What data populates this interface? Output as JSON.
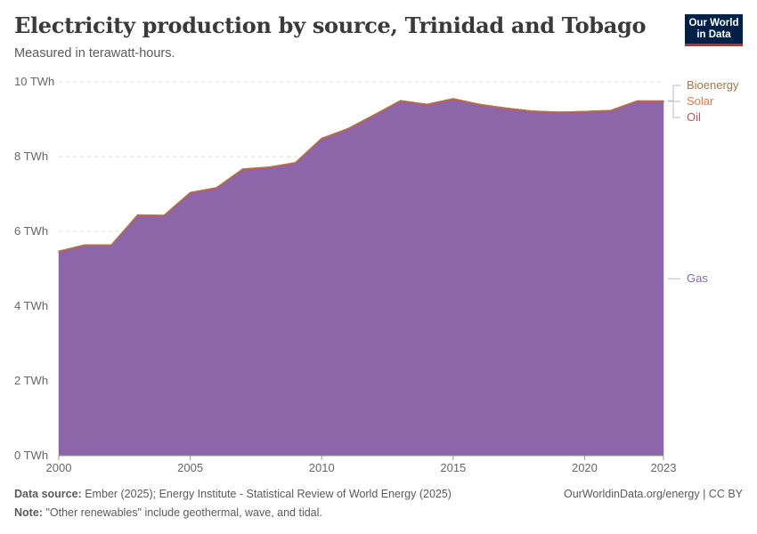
{
  "header": {
    "title": "Electricity production by source, Trinidad and Tobago",
    "subtitle": "Measured in terawatt-hours."
  },
  "logo": {
    "line1": "Our World",
    "line2": "in Data"
  },
  "footer": {
    "source_label": "Data source:",
    "source_text": "Ember (2025); Energy Institute - Statistical Review of World Energy (2025)",
    "note_label": "Note:",
    "note_text": "\"Other renewables\" include geothermal, wave, and tidal.",
    "credit": "OurWorldinData.org/energy | CC BY"
  },
  "colors": {
    "gas": "#8c66a8",
    "oil": "#c2565f",
    "solar": "#e07b49",
    "bioenergy": "#a6784a",
    "grid": "#dddddd",
    "axis_text": "#666666"
  },
  "chart_data": {
    "type": "area",
    "stacked": true,
    "x": [
      2000,
      2001,
      2002,
      2003,
      2004,
      2005,
      2006,
      2007,
      2008,
      2009,
      2010,
      2011,
      2012,
      2013,
      2014,
      2015,
      2016,
      2017,
      2018,
      2019,
      2020,
      2021,
      2022,
      2023
    ],
    "series": [
      {
        "name": "Gas",
        "color": "#8c66a8",
        "values": [
          5.45,
          5.62,
          5.62,
          6.42,
          6.41,
          7.02,
          7.15,
          7.65,
          7.7,
          7.82,
          8.47,
          8.73,
          9.1,
          9.48,
          9.38,
          9.53,
          9.38,
          9.28,
          9.2,
          9.17,
          9.19,
          9.22,
          9.47,
          9.47
        ]
      },
      {
        "name": "Oil",
        "color": "#c2565f",
        "values": [
          0.02,
          0.02,
          0.02,
          0.02,
          0.02,
          0.02,
          0.02,
          0.02,
          0.02,
          0.02,
          0.02,
          0.02,
          0.02,
          0.02,
          0.02,
          0.02,
          0.02,
          0.02,
          0.02,
          0.02,
          0.02,
          0.02,
          0.02,
          0.02
        ]
      },
      {
        "name": "Solar",
        "color": "#e07b49",
        "values": [
          0,
          0,
          0,
          0,
          0,
          0,
          0,
          0,
          0,
          0,
          0,
          0,
          0,
          0,
          0,
          0,
          0,
          0,
          0,
          0,
          0,
          0,
          0.003,
          0.003
        ]
      },
      {
        "name": "Bioenergy",
        "color": "#a6784a",
        "values": [
          0,
          0,
          0,
          0,
          0,
          0,
          0,
          0,
          0,
          0,
          0,
          0,
          0,
          0,
          0,
          0,
          0,
          0,
          0,
          0,
          0,
          0,
          0,
          0
        ]
      }
    ],
    "ylim": [
      0,
      10
    ],
    "yticks": [
      0,
      2,
      4,
      6,
      8,
      10
    ],
    "ytick_labels": [
      "0 TWh",
      "2 TWh",
      "4 TWh",
      "6 TWh",
      "8 TWh",
      "10 TWh"
    ],
    "xticks": [
      2000,
      2005,
      2010,
      2015,
      2020,
      2023
    ],
    "xtick_labels": [
      "2000",
      "2005",
      "2010",
      "2015",
      "2020",
      "2023"
    ],
    "legend_placement": "right (labels at series end)",
    "legend_labels": [
      {
        "name": "Bioenergy",
        "color": "#a6784a"
      },
      {
        "name": "Solar",
        "color": "#e07b49"
      },
      {
        "name": "Oil",
        "color": "#c2565f"
      },
      {
        "name": "Gas",
        "color": "#8c66a8"
      }
    ],
    "grid": "horizontal dashed"
  }
}
